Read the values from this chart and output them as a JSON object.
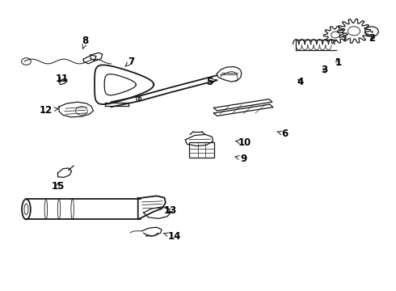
{
  "background_color": "#ffffff",
  "figsize": [
    4.9,
    3.6
  ],
  "dpi": 100,
  "line_color": "#1a1a1a",
  "text_color": "#000000",
  "font_size": 8.5,
  "font_weight": "bold",
  "label_positions": {
    "1": [
      0.855,
      0.785,
      0.848,
      0.81
    ],
    "2": [
      0.94,
      0.87,
      0.932,
      0.858
    ],
    "3": [
      0.82,
      0.76,
      0.81,
      0.768
    ],
    "4": [
      0.76,
      0.72,
      0.752,
      0.73
    ],
    "5": [
      0.53,
      0.72,
      0.548,
      0.728
    ],
    "6": [
      0.72,
      0.54,
      0.7,
      0.548
    ],
    "7": [
      0.33,
      0.79,
      0.315,
      0.772
    ],
    "8": [
      0.215,
      0.86,
      0.208,
      0.832
    ],
    "9": [
      0.615,
      0.455,
      0.592,
      0.462
    ],
    "10": [
      0.618,
      0.51,
      0.594,
      0.516
    ],
    "11": [
      0.155,
      0.73,
      0.15,
      0.71
    ],
    "12": [
      0.115,
      0.62,
      0.148,
      0.628
    ],
    "13": [
      0.43,
      0.275,
      0.42,
      0.262
    ],
    "14": [
      0.44,
      0.185,
      0.412,
      0.198
    ],
    "15": [
      0.145,
      0.36,
      0.148,
      0.382
    ]
  }
}
